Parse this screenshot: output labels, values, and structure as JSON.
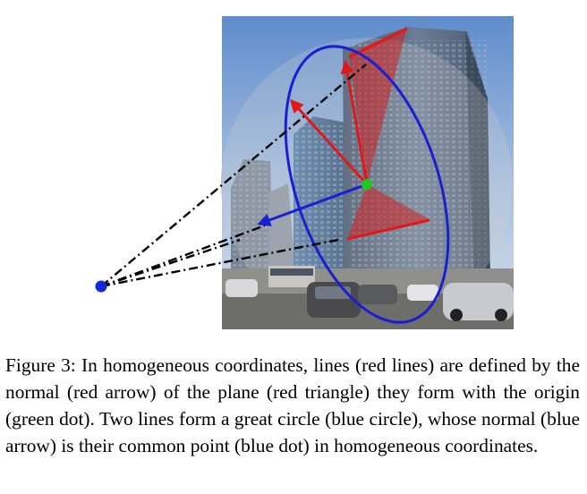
{
  "caption": {
    "label": "Figure 3:",
    "text": "In homogeneous coordinates, lines (red lines) are defined by the normal (red arrow) of the plane (red triangle) they form with the origin (green dot). Two lines form a great circle (blue circle), whose normal (blue arrow) is their common point (blue dot) in homogeneous coordinates."
  },
  "colors": {
    "line": "#e01818",
    "plane": "#d42020",
    "great_circle": "#1a1fd0",
    "origin": "#1ec81e",
    "common_point": "#1428d8",
    "sphere": "#bdbdbd",
    "sky": "#6f98cf"
  }
}
